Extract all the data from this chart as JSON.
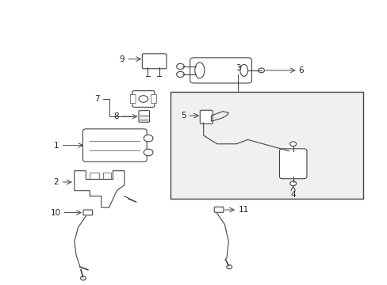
{
  "background_color": "#ffffff",
  "line_color": "#444444",
  "label_color": "#222222",
  "fig_width": 4.89,
  "fig_height": 3.6,
  "dpi": 100
}
